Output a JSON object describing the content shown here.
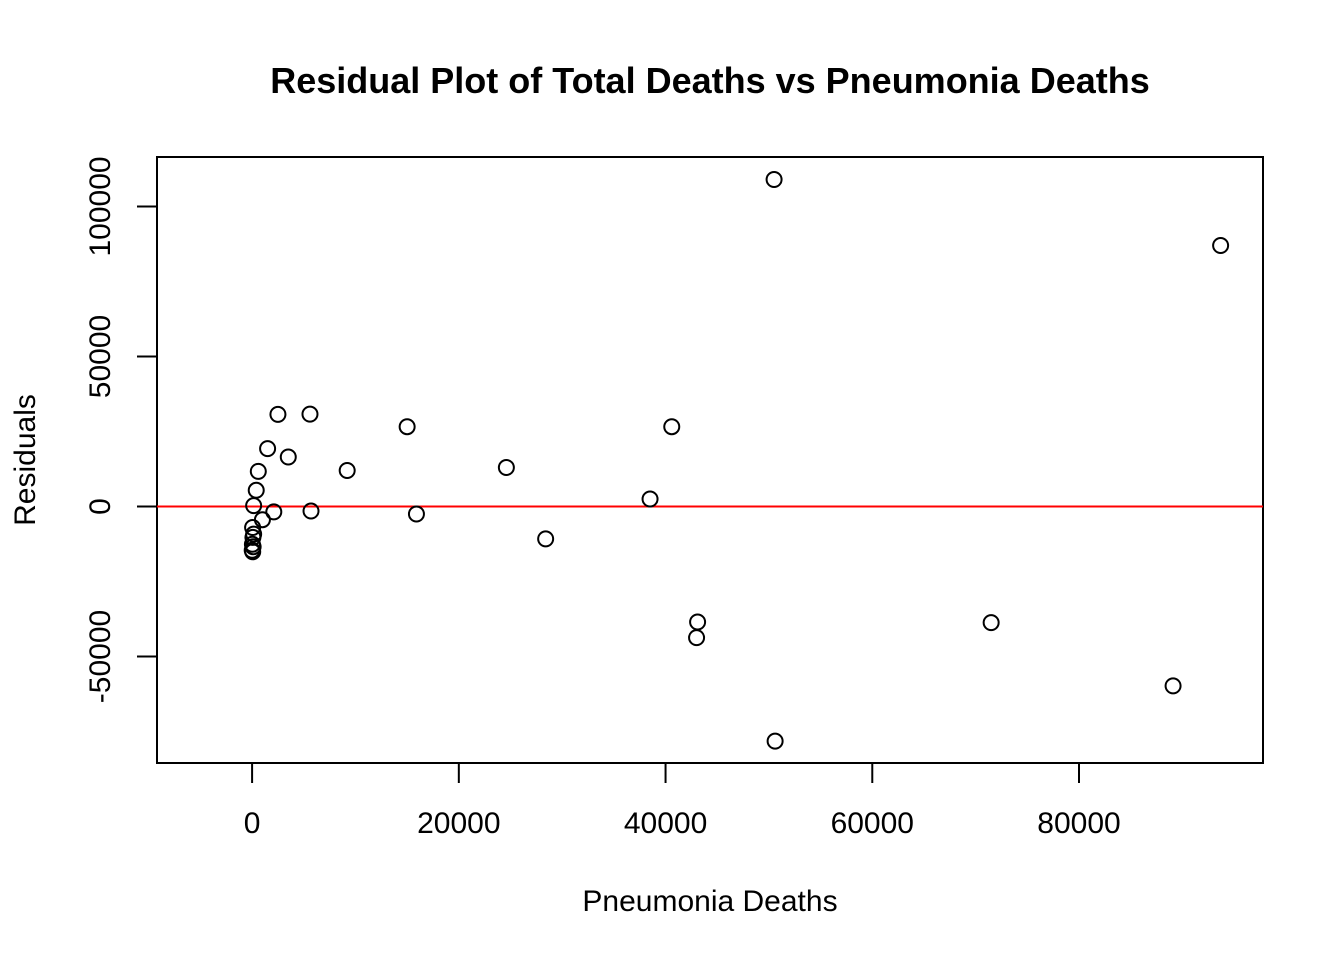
{
  "chart_data": {
    "type": "scatter",
    "title": "Residual Plot of Total Deaths vs Pneumonia Deaths",
    "xlabel": "Pneumonia Deaths",
    "ylabel": "Residuals",
    "xlim": [
      -9200,
      97800
    ],
    "ylim": [
      -85500,
      116500
    ],
    "x_ticks": [
      0,
      20000,
      40000,
      60000,
      80000
    ],
    "x_tick_labels": [
      "0",
      "20000",
      "40000",
      "60000",
      "80000"
    ],
    "y_ticks": [
      -50000,
      0,
      50000,
      100000
    ],
    "y_tick_labels": [
      "-50000",
      "0",
      "50000",
      "100000"
    ],
    "reference_line": {
      "y": 0,
      "color": "#ff0000"
    },
    "marker": "open-circle",
    "grid": false,
    "legend": "none",
    "points": [
      {
        "x": 50500,
        "y": 109000
      },
      {
        "x": 93700,
        "y": 87000
      },
      {
        "x": 2500,
        "y": 30700
      },
      {
        "x": 5600,
        "y": 30800
      },
      {
        "x": 15000,
        "y": 26600
      },
      {
        "x": 40600,
        "y": 26600
      },
      {
        "x": 1500,
        "y": 19300
      },
      {
        "x": 3500,
        "y": 16500
      },
      {
        "x": 600,
        "y": 11700
      },
      {
        "x": 9200,
        "y": 12000
      },
      {
        "x": 24600,
        "y": 13000
      },
      {
        "x": 400,
        "y": 5400
      },
      {
        "x": 38500,
        "y": 2500
      },
      {
        "x": 150,
        "y": 300
      },
      {
        "x": 2100,
        "y": -1800
      },
      {
        "x": 5700,
        "y": -1500
      },
      {
        "x": 15900,
        "y": -2500
      },
      {
        "x": 1000,
        "y": -4400
      },
      {
        "x": 50,
        "y": -7000
      },
      {
        "x": 150,
        "y": -9200
      },
      {
        "x": 80,
        "y": -10300
      },
      {
        "x": 28400,
        "y": -10800
      },
      {
        "x": 30,
        "y": -12600
      },
      {
        "x": 100,
        "y": -13400
      },
      {
        "x": 10,
        "y": -14600
      },
      {
        "x": 60,
        "y": -15100
      },
      {
        "x": 43100,
        "y": -38500
      },
      {
        "x": 43000,
        "y": -43700
      },
      {
        "x": 71500,
        "y": -38700
      },
      {
        "x": 89100,
        "y": -59800
      },
      {
        "x": 50600,
        "y": -78200
      }
    ]
  }
}
